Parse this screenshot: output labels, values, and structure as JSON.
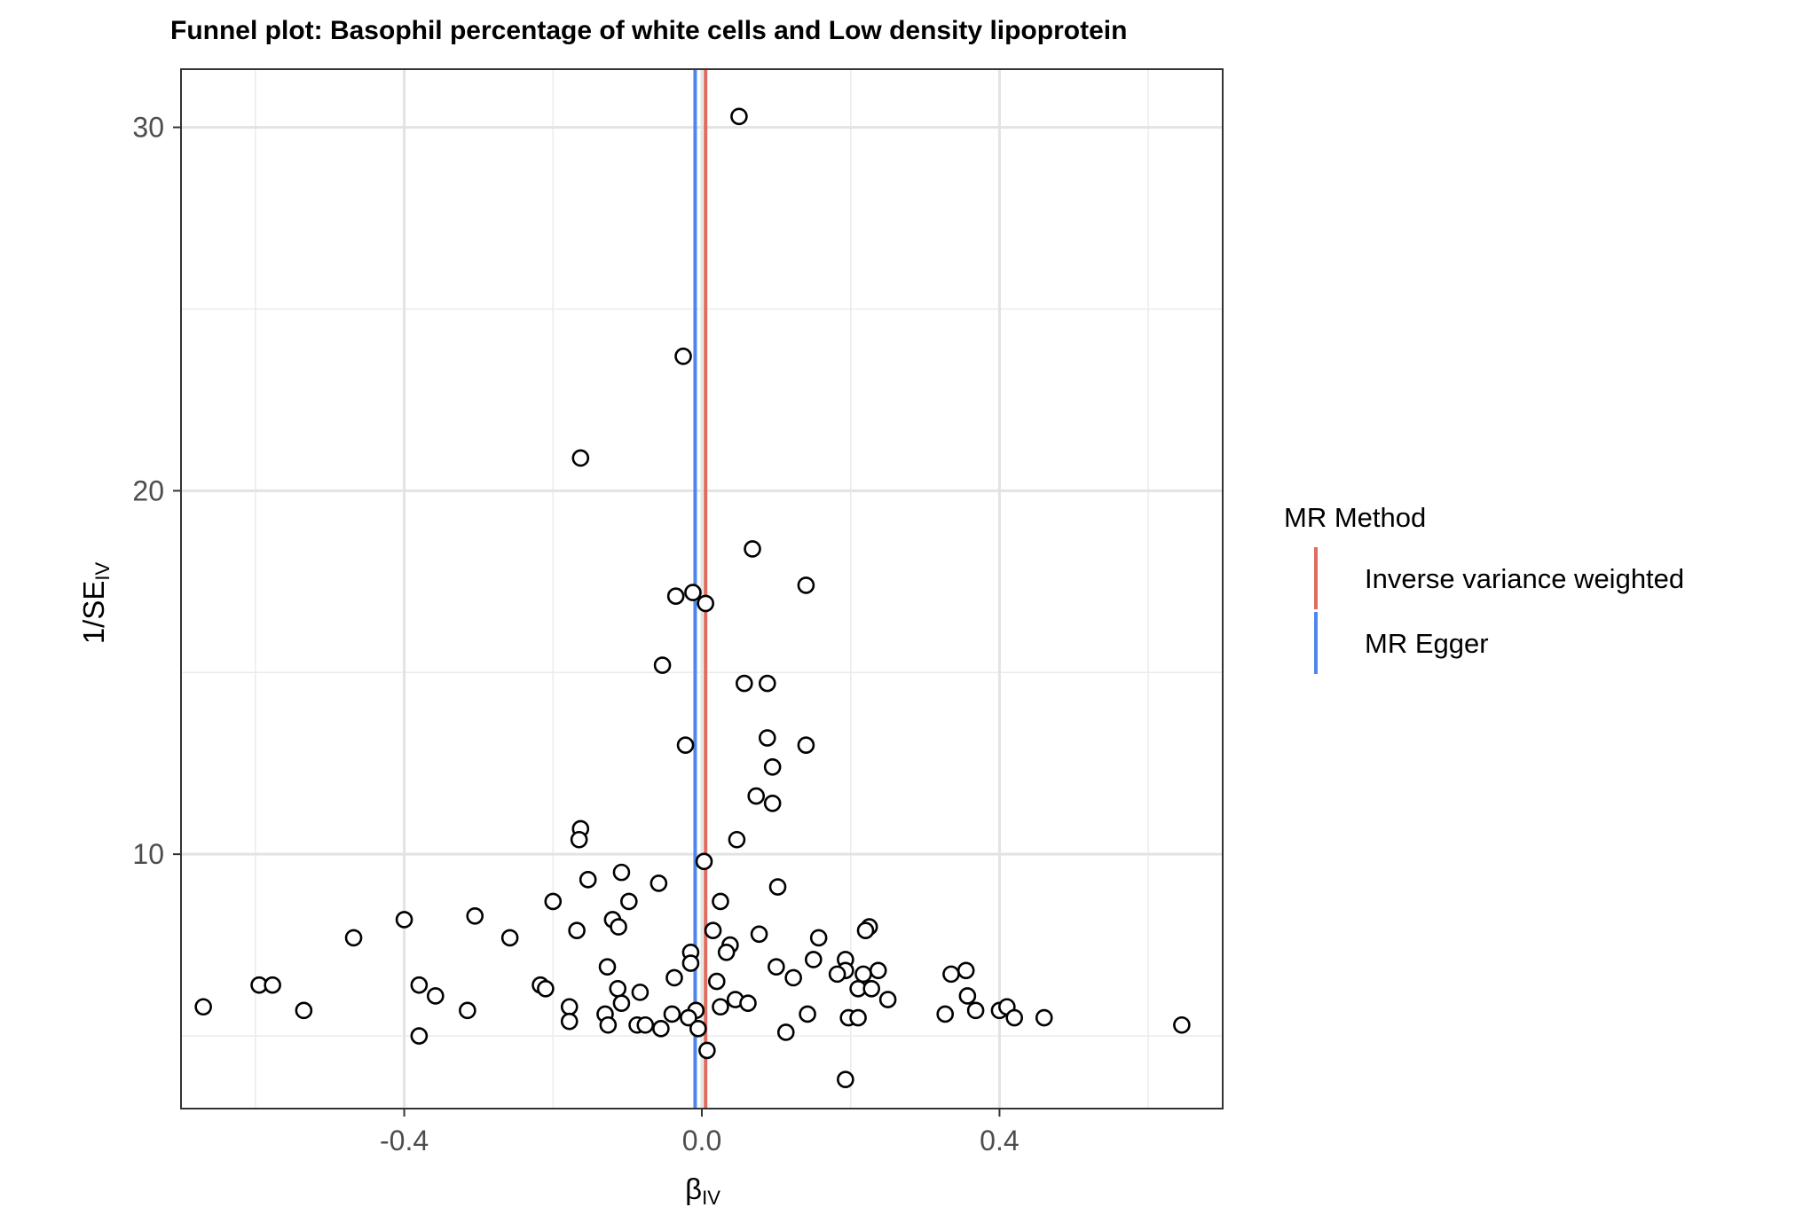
{
  "chart_data": {
    "type": "scatter",
    "title": "Funnel plot: Basophil percentage of white cells and Low density lipoprotein",
    "xlabel": "β",
    "xlabel_sub": "IV",
    "ylabel": "1/SE",
    "ylabel_sub": "IV",
    "xlim": [
      -0.7,
      0.7
    ],
    "ylim": [
      3.0,
      31.6
    ],
    "xticks": [
      -0.4,
      0.0,
      0.4
    ],
    "xtick_labels": [
      "-0.4",
      "0.0",
      "0.4"
    ],
    "yticks": [
      10,
      20,
      30
    ],
    "ytick_labels": [
      "10",
      "20",
      "30"
    ],
    "x_minor_gridlines": [
      -0.6,
      -0.2,
      0.2,
      0.6
    ],
    "y_minor_gridlines": [
      5,
      15,
      25
    ],
    "grid": true,
    "legend_position": "right",
    "legend": {
      "title": "MR Method",
      "items": [
        {
          "label": "Inverse variance weighted",
          "color": "#E06C5F"
        },
        {
          "label": "MR Egger",
          "color": "#4F86EE"
        }
      ]
    },
    "vlines": [
      {
        "method": "Inverse variance weighted",
        "x": 0.005,
        "color": "#E06C5F"
      },
      {
        "method": "MR Egger",
        "x": -0.009,
        "color": "#4F86EE"
      }
    ],
    "points": [
      [
        0.05,
        30.3
      ],
      [
        -0.025,
        23.7
      ],
      [
        -0.163,
        20.9
      ],
      [
        0.068,
        18.4
      ],
      [
        0.14,
        17.4
      ],
      [
        -0.012,
        17.2
      ],
      [
        -0.035,
        17.1
      ],
      [
        0.005,
        16.9
      ],
      [
        -0.053,
        15.2
      ],
      [
        0.057,
        14.7
      ],
      [
        0.088,
        14.7
      ],
      [
        0.088,
        13.2
      ],
      [
        -0.022,
        13.0
      ],
      [
        0.14,
        13.0
      ],
      [
        0.095,
        12.4
      ],
      [
        0.073,
        11.6
      ],
      [
        0.095,
        11.4
      ],
      [
        -0.163,
        10.7
      ],
      [
        -0.165,
        10.4
      ],
      [
        0.047,
        10.4
      ],
      [
        0.003,
        9.8
      ],
      [
        -0.108,
        9.5
      ],
      [
        -0.153,
        9.3
      ],
      [
        -0.058,
        9.2
      ],
      [
        0.102,
        9.1
      ],
      [
        -0.098,
        8.7
      ],
      [
        -0.2,
        8.7
      ],
      [
        0.025,
        8.7
      ],
      [
        -0.305,
        8.3
      ],
      [
        -0.4,
        8.2
      ],
      [
        -0.12,
        8.2
      ],
      [
        0.225,
        8.0
      ],
      [
        -0.112,
        8.0
      ],
      [
        -0.168,
        7.9
      ],
      [
        0.015,
        7.9
      ],
      [
        0.22,
        7.9
      ],
      [
        0.077,
        7.8
      ],
      [
        -0.468,
        7.7
      ],
      [
        -0.258,
        7.7
      ],
      [
        0.157,
        7.7
      ],
      [
        0.038,
        7.5
      ],
      [
        -0.015,
        7.3
      ],
      [
        0.033,
        7.3
      ],
      [
        0.15,
        7.1
      ],
      [
        0.193,
        7.1
      ],
      [
        -0.015,
        7.0
      ],
      [
        0.1,
        6.9
      ],
      [
        -0.127,
        6.9
      ],
      [
        0.193,
        6.8
      ],
      [
        0.237,
        6.8
      ],
      [
        0.355,
        6.8
      ],
      [
        0.182,
        6.7
      ],
      [
        0.217,
        6.7
      ],
      [
        0.335,
        6.7
      ],
      [
        -0.037,
        6.6
      ],
      [
        0.123,
        6.6
      ],
      [
        0.02,
        6.5
      ],
      [
        -0.595,
        6.4
      ],
      [
        -0.577,
        6.4
      ],
      [
        -0.38,
        6.4
      ],
      [
        -0.217,
        6.4
      ],
      [
        -0.21,
        6.3
      ],
      [
        0.21,
        6.3
      ],
      [
        -0.113,
        6.3
      ],
      [
        0.228,
        6.3
      ],
      [
        -0.083,
        6.2
      ],
      [
        -0.358,
        6.1
      ],
      [
        0.357,
        6.1
      ],
      [
        0.25,
        6.0
      ],
      [
        0.045,
        6.0
      ],
      [
        0.062,
        5.9
      ],
      [
        -0.108,
        5.9
      ],
      [
        0.025,
        5.8
      ],
      [
        -0.67,
        5.8
      ],
      [
        -0.178,
        5.8
      ],
      [
        -0.535,
        5.7
      ],
      [
        -0.315,
        5.7
      ],
      [
        0.368,
        5.7
      ],
      [
        0.4,
        5.7
      ],
      [
        0.41,
        5.8
      ],
      [
        -0.008,
        5.7
      ],
      [
        -0.13,
        5.6
      ],
      [
        -0.04,
        5.6
      ],
      [
        0.142,
        5.6
      ],
      [
        0.197,
        5.5
      ],
      [
        0.21,
        5.5
      ],
      [
        0.327,
        5.6
      ],
      [
        -0.018,
        5.5
      ],
      [
        0.42,
        5.5
      ],
      [
        0.46,
        5.5
      ],
      [
        -0.178,
        5.4
      ],
      [
        -0.126,
        5.3
      ],
      [
        -0.087,
        5.3
      ],
      [
        -0.076,
        5.3
      ],
      [
        0.645,
        5.3
      ],
      [
        -0.005,
        5.2
      ],
      [
        -0.055,
        5.2
      ],
      [
        0.113,
        5.1
      ],
      [
        -0.38,
        5.0
      ],
      [
        0.007,
        4.6
      ],
      [
        0.193,
        3.8
      ]
    ]
  }
}
